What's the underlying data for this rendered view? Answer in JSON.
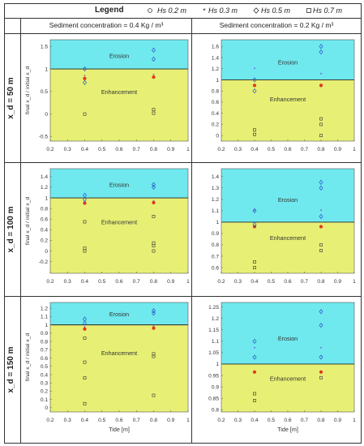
{
  "legend": {
    "title": "Legend",
    "items": [
      {
        "marker": "circle",
        "text": "Hs 0.2 m",
        "color": "#333333"
      },
      {
        "marker": "star",
        "text": "Hs 0.3 m",
        "color": "#333333"
      },
      {
        "marker": "diamond",
        "text": "Hs 0.5 m",
        "color": "#333333"
      },
      {
        "marker": "square",
        "text": "Hs 0.7 m",
        "color": "#333333"
      }
    ]
  },
  "columns": [
    "Sediment concentration = 0.4 Kg / m³",
    "Sediment concentration = 0.2 Kg / m³"
  ],
  "rows": [
    "x_d = 50 m",
    "x_d = 100 m",
    "x_d = 150 m"
  ],
  "ylabel": "final x_d / initial x_d",
  "colors": {
    "erosion": "#6fe9ee",
    "enhancement": "#e7f075",
    "hs02": "#e03a1e",
    "hs03": "#7c2bd0",
    "hs05": "#2a55c8",
    "hs07": "#333333"
  },
  "chart_data": [
    {
      "type": "scatter",
      "row": 0,
      "col": 0,
      "xlabel": "",
      "xlim": [
        0.2,
        1
      ],
      "xticks": [
        "0.2",
        "0.3",
        "0.4",
        "0.5",
        "0.6",
        "0.7",
        "0.8",
        "0.9",
        "1"
      ],
      "ylim": [
        -0.6,
        1.65
      ],
      "yticks": [
        "-0.5",
        "0",
        "0.5",
        "1",
        "1.5"
      ],
      "threshold": 1,
      "zones": {
        "upper": "Erosion",
        "lower": "Enhancement"
      },
      "series": [
        {
          "marker": "circle",
          "x": [
            0.4,
            0.8
          ],
          "y": [
            0.79,
            0.82
          ]
        },
        {
          "marker": "star",
          "x": [
            0.4,
            0.8
          ],
          "y": [
            0.84,
            0.87
          ]
        },
        {
          "marker": "diamond",
          "x": [
            0.4,
            0.4,
            0.8,
            0.8
          ],
          "y": [
            1.0,
            0.7,
            1.42,
            1.22
          ]
        },
        {
          "marker": "square",
          "x": [
            0.4,
            0.8,
            0.8
          ],
          "y": [
            0.0,
            0.1,
            0.02
          ]
        }
      ]
    },
    {
      "type": "scatter",
      "row": 0,
      "col": 1,
      "xlabel": "",
      "xlim": [
        0.2,
        1
      ],
      "xticks": [
        "0.2",
        "0.3",
        "0.4",
        "0.5",
        "0.6",
        "0.7",
        "0.8",
        "0.9",
        "1"
      ],
      "ylim": [
        -0.1,
        1.72
      ],
      "yticks": [
        "0",
        "0.2",
        "0.4",
        "0.6",
        "0.8",
        "1",
        "1.2",
        "1.4",
        "1.6"
      ],
      "threshold": 1,
      "zones": {
        "upper": "Erosion",
        "lower": "Enhancement"
      },
      "series": [
        {
          "marker": "circle",
          "x": [
            0.4,
            0.8
          ],
          "y": [
            0.9,
            0.9
          ]
        },
        {
          "marker": "star",
          "x": [
            0.4,
            0.8
          ],
          "y": [
            1.2,
            1.1
          ]
        },
        {
          "marker": "diamond",
          "x": [
            0.4,
            0.4,
            0.8,
            0.8
          ],
          "y": [
            1.0,
            0.8,
            1.6,
            1.5
          ]
        },
        {
          "marker": "square",
          "x": [
            0.4,
            0.4,
            0.8,
            0.8,
            0.8
          ],
          "y": [
            0.1,
            0.02,
            0.3,
            0.2,
            0.0
          ]
        }
      ]
    },
    {
      "type": "scatter",
      "row": 1,
      "col": 0,
      "xlabel": "",
      "xlim": [
        0.2,
        1
      ],
      "xticks": [
        "0.2",
        "0.3",
        "0.4",
        "0.5",
        "0.6",
        "0.7",
        "0.8",
        "0.9",
        "1"
      ],
      "ylim": [
        -0.42,
        1.55
      ],
      "yticks": [
        "-0.2",
        "0",
        "0.2",
        "0.4",
        "0.6",
        "0.8",
        "1",
        "1.2",
        "1.4"
      ],
      "threshold": 1,
      "zones": {
        "upper": "Erosion",
        "lower": "Enhancement"
      },
      "series": [
        {
          "marker": "circle",
          "x": [
            0.4,
            0.8
          ],
          "y": [
            0.9,
            0.91
          ]
        },
        {
          "marker": "star",
          "x": [
            0.4,
            0.8
          ],
          "y": [
            0.92,
            0.93
          ]
        },
        {
          "marker": "diamond",
          "x": [
            0.4,
            0.4,
            0.8,
            0.8
          ],
          "y": [
            1.05,
            0.97,
            1.25,
            1.2
          ]
        },
        {
          "marker": "square",
          "x": [
            0.4,
            0.4,
            0.4,
            0.8,
            0.8,
            0.8,
            0.8
          ],
          "y": [
            0.55,
            0.05,
            0.0,
            0.65,
            0.15,
            0.1,
            0.0
          ]
        }
      ]
    },
    {
      "type": "scatter",
      "row": 1,
      "col": 1,
      "xlabel": "",
      "xlim": [
        0.2,
        1
      ],
      "xticks": [
        "0.2",
        "0.3",
        "0.4",
        "0.5",
        "0.6",
        "0.7",
        "0.8",
        "0.9",
        "1"
      ],
      "ylim": [
        0.55,
        1.47
      ],
      "yticks": [
        "0.6",
        "0.7",
        "0.8",
        "0.9",
        "1",
        "1.1",
        "1.2",
        "1.3",
        "1.4"
      ],
      "threshold": 1,
      "zones": {
        "upper": "Erosion",
        "lower": "Enhancement"
      },
      "series": [
        {
          "marker": "circle",
          "x": [
            0.4,
            0.8
          ],
          "y": [
            0.96,
            0.96
          ]
        },
        {
          "marker": "star",
          "x": [
            0.4,
            0.8
          ],
          "y": [
            1.1,
            1.1
          ]
        },
        {
          "marker": "diamond",
          "x": [
            0.4,
            0.4,
            0.8,
            0.8,
            0.8
          ],
          "y": [
            1.1,
            0.98,
            1.35,
            1.3,
            1.05
          ]
        },
        {
          "marker": "square",
          "x": [
            0.4,
            0.4,
            0.8,
            0.8
          ],
          "y": [
            0.65,
            0.6,
            0.8,
            0.75
          ]
        }
      ]
    },
    {
      "type": "scatter",
      "row": 2,
      "col": 0,
      "xlabel": "Tide [m]",
      "xlim": [
        0.2,
        1
      ],
      "xticks": [
        "0.2",
        "0.3",
        "0.4",
        "0.5",
        "0.6",
        "0.7",
        "0.8",
        "0.9",
        "1"
      ],
      "ylim": [
        -0.05,
        1.27
      ],
      "yticks": [
        "0",
        "0.1",
        "0.2",
        "0.3",
        "0.4",
        "0.5",
        "0.6",
        "0.7",
        "0.8",
        "0.9",
        "1",
        "1.1",
        "1.2"
      ],
      "threshold": 1,
      "zones": {
        "upper": "Erosion",
        "lower": "Enhancement"
      },
      "series": [
        {
          "marker": "circle",
          "x": [
            0.4,
            0.8
          ],
          "y": [
            0.95,
            0.96
          ]
        },
        {
          "marker": "star",
          "x": [
            0.4,
            0.8
          ],
          "y": [
            0.97,
            0.98
          ]
        },
        {
          "marker": "diamond",
          "x": [
            0.4,
            0.4,
            0.8,
            0.8
          ],
          "y": [
            1.07,
            1.02,
            1.17,
            1.14
          ]
        },
        {
          "marker": "square",
          "x": [
            0.4,
            0.4,
            0.4,
            0.4,
            0.8,
            0.8,
            0.8
          ],
          "y": [
            0.84,
            0.55,
            0.36,
            0.05,
            0.65,
            0.62,
            0.15
          ]
        }
      ]
    },
    {
      "type": "scatter",
      "row": 2,
      "col": 1,
      "xlabel": "Tide [m]",
      "xlim": [
        0.2,
        1
      ],
      "xticks": [
        "0.2",
        "0.3",
        "0.4",
        "0.5",
        "0.6",
        "0.7",
        "0.8",
        "0.9",
        "1"
      ],
      "ylim": [
        0.79,
        1.27
      ],
      "yticks": [
        "0.8",
        "0.85",
        "0.9",
        "0.95",
        "1",
        "1.05",
        "1.1",
        "1.15",
        "1.2",
        "1.25"
      ],
      "threshold": 1,
      "zones": {
        "upper": "Erosion",
        "lower": "Enhancement"
      },
      "series": [
        {
          "marker": "circle",
          "x": [
            0.4,
            0.8
          ],
          "y": [
            0.965,
            0.965
          ]
        },
        {
          "marker": "star",
          "x": [
            0.4,
            0.8
          ],
          "y": [
            1.07,
            1.07
          ]
        },
        {
          "marker": "diamond",
          "x": [
            0.4,
            0.4,
            0.8,
            0.8,
            0.8
          ],
          "y": [
            1.1,
            1.03,
            1.23,
            1.17,
            1.03
          ]
        },
        {
          "marker": "square",
          "x": [
            0.4,
            0.4,
            0.8
          ],
          "y": [
            0.87,
            0.84,
            0.94
          ]
        }
      ]
    }
  ]
}
